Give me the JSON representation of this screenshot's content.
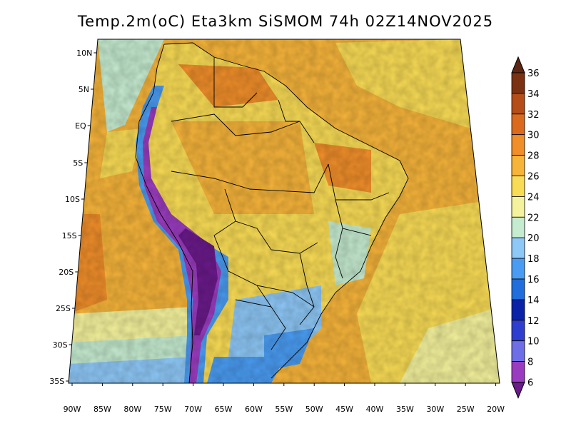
{
  "title": "Temp.2m(oC) Eta3km SiSMOM 74h 02Z14NOV2025",
  "lat_ticks": [
    "10N",
    "5N",
    "EQ",
    "5S",
    "10S",
    "15S",
    "20S",
    "25S",
    "30S",
    "35S"
  ],
  "lon_ticks": [
    "90W",
    "85W",
    "80W",
    "75W",
    "70W",
    "65W",
    "60W",
    "55W",
    "50W",
    "45W",
    "40W",
    "35W",
    "30W",
    "25W",
    "20W"
  ],
  "colorbar": {
    "labels": [
      "6",
      "8",
      "10",
      "12",
      "14",
      "16",
      "18",
      "20",
      "22",
      "24",
      "26",
      "28",
      "30",
      "32",
      "34",
      "36"
    ],
    "colors": [
      "#6a1a8a",
      "#9a3cbf",
      "#6e6ee6",
      "#2e3ecf",
      "#0a22a8",
      "#1f6edc",
      "#4a9cf2",
      "#8ec8f7",
      "#c6ecd0",
      "#f4f29c",
      "#f9dc55",
      "#f6b43a",
      "#f08e2a",
      "#d96a1e",
      "#b44d18",
      "#7a3212",
      "#5e2510"
    ]
  }
}
